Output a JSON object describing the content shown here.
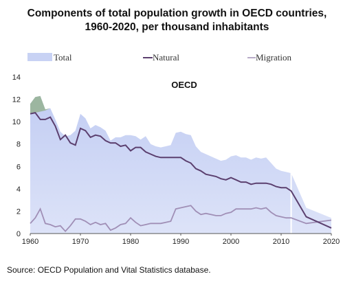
{
  "title_line1": "Components of total population growth in OECD countries,",
  "title_line2": "1960-2020, per thousand inhabitants",
  "source": "Source: OECD Population and Vital Statistics database.",
  "chart_data": {
    "type": "area",
    "panel_label": "OECD",
    "x": [
      1960,
      1961,
      1962,
      1963,
      1964,
      1965,
      1966,
      1967,
      1968,
      1969,
      1970,
      1971,
      1972,
      1973,
      1974,
      1975,
      1976,
      1977,
      1978,
      1979,
      1980,
      1981,
      1982,
      1983,
      1984,
      1985,
      1986,
      1987,
      1988,
      1989,
      1990,
      1991,
      1992,
      1993,
      1994,
      1995,
      1996,
      1997,
      1998,
      1999,
      2000,
      2001,
      2002,
      2003,
      2004,
      2005,
      2006,
      2007,
      2008,
      2009,
      2010,
      2011,
      2012,
      2015,
      2020
    ],
    "series": [
      {
        "name": "Total",
        "style": "area",
        "color": "#ccd6f5",
        "values": [
          11.6,
          12.2,
          12.3,
          11.1,
          11.2,
          10.2,
          9.1,
          8.7,
          8.8,
          9.2,
          10.7,
          10.3,
          9.4,
          9.7,
          9.5,
          9.2,
          8.3,
          8.6,
          8.6,
          8.8,
          8.8,
          8.7,
          8.4,
          8.7,
          8.0,
          7.8,
          7.7,
          7.8,
          7.9,
          9.0,
          9.1,
          8.9,
          8.8,
          7.8,
          7.3,
          7.1,
          6.9,
          6.7,
          6.5,
          6.6,
          6.9,
          7.0,
          6.8,
          6.8,
          6.6,
          6.8,
          6.7,
          6.8,
          6.3,
          5.8,
          5.6,
          5.5,
          5.4,
          2.3,
          1.4
        ]
      },
      {
        "name": "Natural",
        "style": "line",
        "color": "#5b3f6e",
        "values": [
          10.7,
          10.8,
          10.2,
          10.2,
          10.4,
          9.6,
          8.4,
          8.8,
          8.1,
          7.9,
          9.4,
          9.2,
          8.6,
          8.8,
          8.7,
          8.3,
          8.1,
          8.1,
          7.8,
          7.9,
          7.4,
          7.7,
          7.7,
          7.3,
          7.1,
          6.9,
          6.8,
          6.8,
          6.8,
          6.8,
          6.8,
          6.5,
          6.3,
          5.8,
          5.6,
          5.3,
          5.2,
          5.1,
          4.9,
          4.8,
          5.0,
          4.8,
          4.6,
          4.6,
          4.4,
          4.5,
          4.5,
          4.5,
          4.4,
          4.2,
          4.1,
          4.1,
          3.8,
          1.5,
          0.5
        ]
      },
      {
        "name": "Migration",
        "style": "line",
        "color": "#a08fb6",
        "values": [
          0.9,
          1.4,
          2.2,
          0.9,
          0.8,
          0.6,
          0.7,
          0.2,
          0.7,
          1.3,
          1.3,
          1.1,
          0.8,
          1.0,
          0.8,
          0.9,
          0.3,
          0.5,
          0.8,
          0.9,
          1.4,
          1.0,
          0.7,
          0.8,
          0.9,
          0.9,
          0.9,
          1.0,
          1.1,
          2.2,
          2.3,
          2.4,
          2.5,
          2.0,
          1.7,
          1.8,
          1.7,
          1.6,
          1.6,
          1.8,
          1.9,
          2.2,
          2.2,
          2.2,
          2.2,
          2.3,
          2.2,
          2.3,
          1.9,
          1.6,
          1.5,
          1.4,
          1.4,
          0.9,
          1.2
        ]
      }
    ],
    "xlim": [
      1960,
      2020
    ],
    "ylim": [
      0,
      14
    ],
    "x_ticks": [
      "1960",
      "1970",
      "1980",
      "1990",
      "2000",
      "2010",
      "2020"
    ],
    "y_ticks": [
      "0",
      "2",
      "4",
      "6",
      "8",
      "10",
      "12",
      "14"
    ],
    "legend": [
      "Total",
      "Natural",
      "Migration"
    ],
    "legend_position": "top",
    "projection_start": 2012,
    "peak_highlight_color": "#95b291",
    "grid": false
  }
}
